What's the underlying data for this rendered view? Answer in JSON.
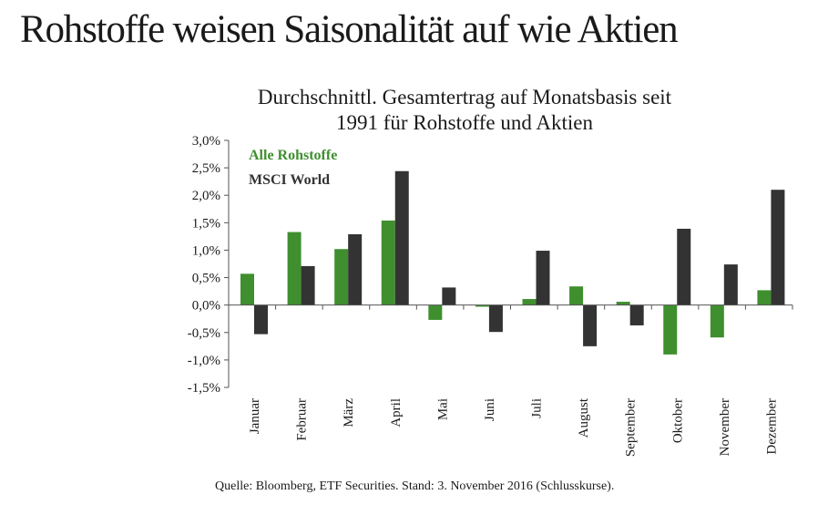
{
  "headline": "Rohstoffe weisen Saisonalität auf wie Aktien",
  "source": "Quelle: Bloomberg, ETF Securities. Stand: 3. November 2016 (Schlusskurse).",
  "colors": {
    "commodities": "#3f8f2f",
    "msci": "#333333",
    "axis": "#555555"
  },
  "chart_data": {
    "type": "bar",
    "title_lines": [
      "Durchschnittl. Gesamtertrag auf Monatsbasis seit",
      "1991 für Rohstoffe und Aktien"
    ],
    "categories": [
      "Januar",
      "Februar",
      "März",
      "April",
      "Mai",
      "Juni",
      "Juli",
      "August",
      "September",
      "Oktober",
      "November",
      "Dezember"
    ],
    "series": [
      {
        "name": "Alle Rohstoffe",
        "values": [
          0.57,
          1.33,
          1.02,
          1.54,
          -0.27,
          -0.03,
          0.11,
          0.34,
          0.06,
          -0.9,
          -0.59,
          0.27
        ]
      },
      {
        "name": "MSCI World",
        "values": [
          -0.53,
          0.71,
          1.29,
          2.44,
          0.32,
          -0.49,
          0.99,
          -0.75,
          -0.37,
          1.39,
          0.74,
          2.1
        ]
      }
    ],
    "yticks": [
      "3,0%",
      "2,5%",
      "2,0%",
      "1,5%",
      "1,0%",
      "0,5%",
      "0,0%",
      "-0,5%",
      "-1,0%",
      "-1,5%"
    ],
    "ylim": [
      -1.5,
      3.0
    ],
    "legend_position": "top-left",
    "grid": false
  }
}
